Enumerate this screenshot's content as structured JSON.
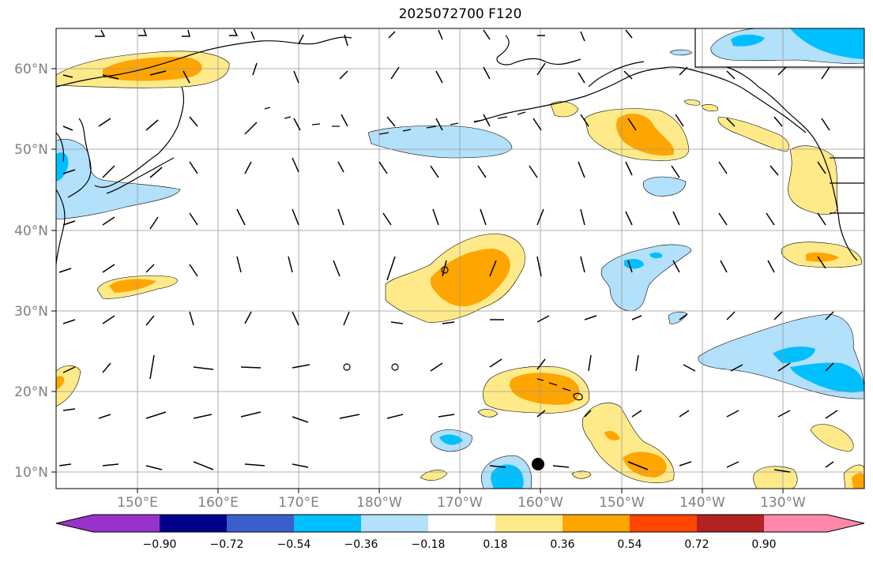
{
  "title": "2025072700 F120",
  "lat_labels": [
    "60°N",
    "50°N",
    "40°N",
    "30°N",
    "20°N",
    "10°N"
  ],
  "lon_labels": [
    "150°E",
    "160°E",
    "170°E",
    "180°W",
    "170°W",
    "160°W",
    "150°W",
    "140°W",
    "130°W"
  ],
  "colorbar": {
    "colors": [
      "#9932cc",
      "#00008b",
      "#3a5fcd",
      "#00bfff",
      "#b3e0fa",
      "#ffffff",
      "#ffea8a",
      "#ffa500",
      "#ff4500",
      "#b22222",
      "#ff88aa"
    ],
    "tick_labels": [
      "−0.90",
      "−0.72",
      "−0.54",
      "−0.36",
      "−0.18",
      "0.18",
      "0.36",
      "0.54",
      "0.72",
      "0.90"
    ]
  },
  "colors": {
    "light_blue": "#b3e0fa",
    "blue": "#00bfff",
    "light_yellow": "#ffea8a",
    "orange": "#ffa500",
    "red_orange": "#ff4500"
  },
  "markers": {
    "tc_symbol": "filled-circle",
    "tc_lat": "11°N",
    "tc_lon": "160°W"
  }
}
